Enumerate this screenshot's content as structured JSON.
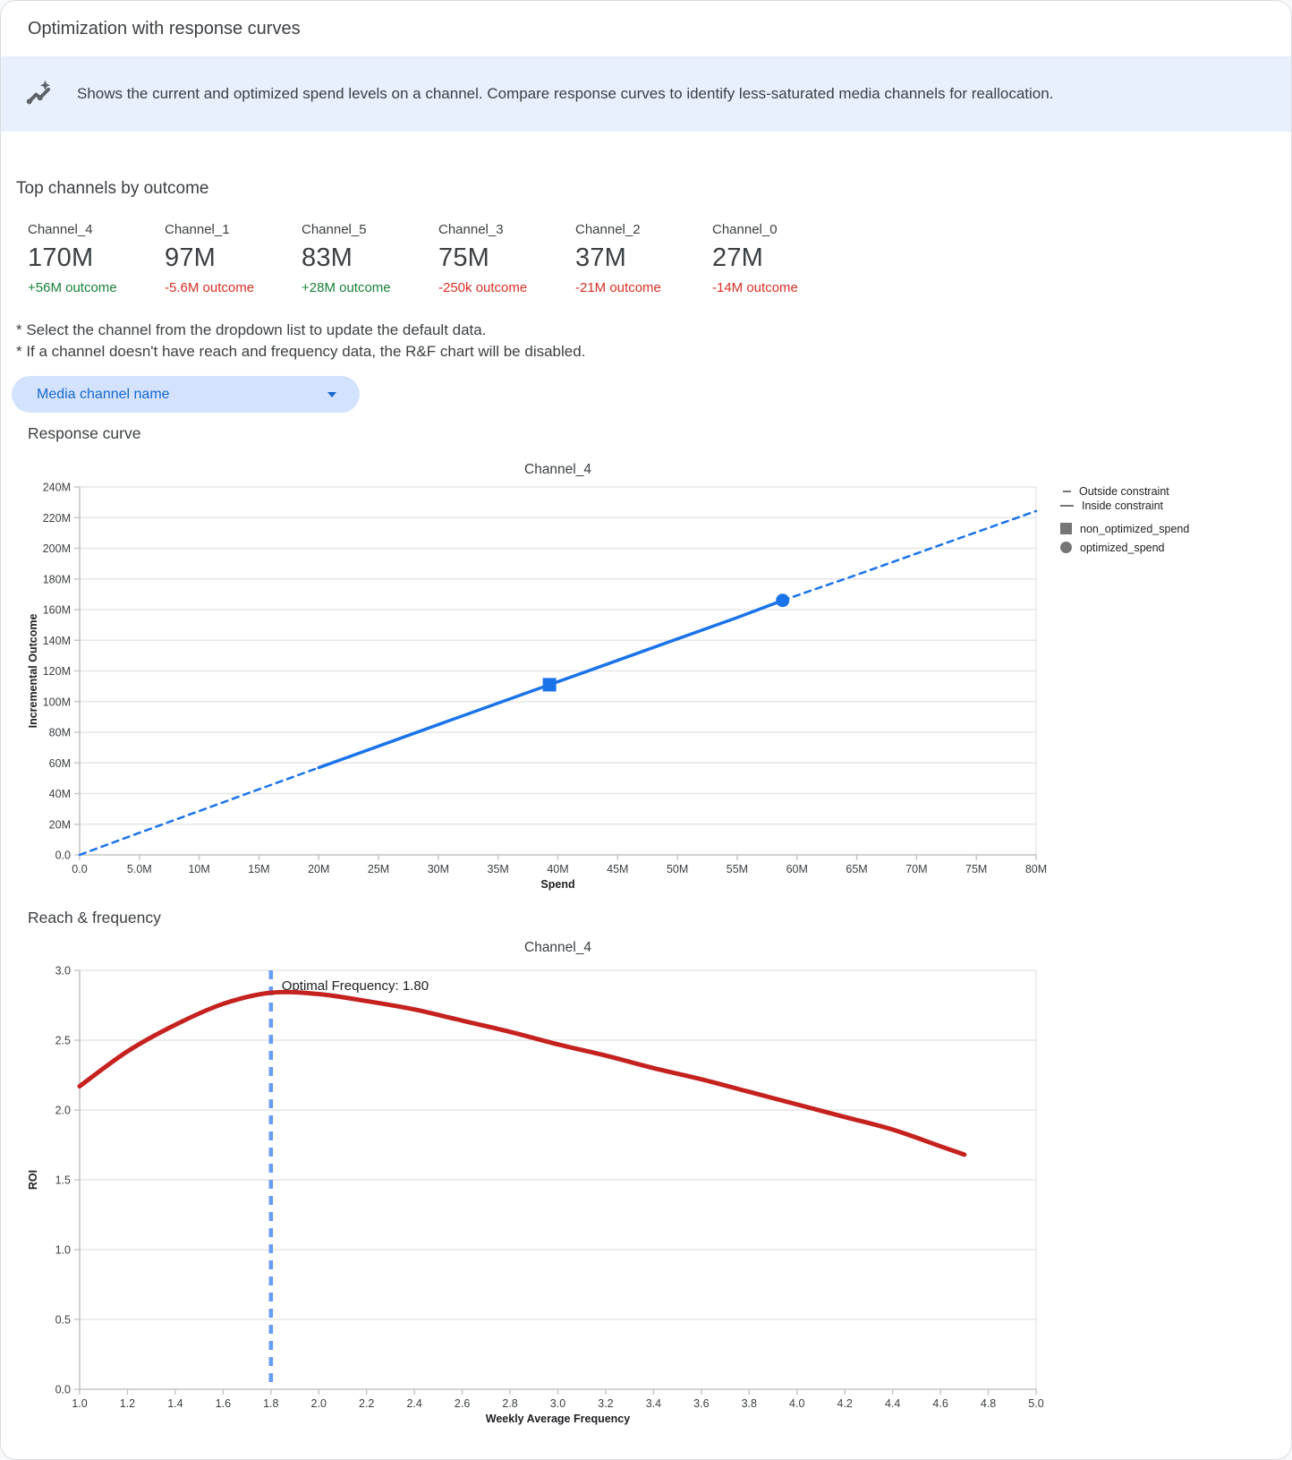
{
  "header": {
    "title": "Optimization with response curves"
  },
  "banner": {
    "icon": "insights-icon",
    "text": "Shows the current and optimized spend levels on a channel. Compare response curves to identify less-saturated media channels for reallocation."
  },
  "top_channels": {
    "heading": "Top channels by outcome",
    "items": [
      {
        "name": "Channel_4",
        "value": "170M",
        "outcome": "+56M outcome",
        "direction": "positive"
      },
      {
        "name": "Channel_1",
        "value": "97M",
        "outcome": "-5.6M outcome",
        "direction": "negative"
      },
      {
        "name": "Channel_5",
        "value": "83M",
        "outcome": "+28M outcome",
        "direction": "positive"
      },
      {
        "name": "Channel_3",
        "value": "75M",
        "outcome": "-250k outcome",
        "direction": "negative"
      },
      {
        "name": "Channel_2",
        "value": "37M",
        "outcome": "-21M outcome",
        "direction": "negative"
      },
      {
        "name": "Channel_0",
        "value": "27M",
        "outcome": "-14M outcome",
        "direction": "negative"
      }
    ]
  },
  "notes": [
    "* Select the channel from the dropdown list to update the default data.",
    "* If a channel doesn't have reach and frequency data, the R&F chart will be disabled."
  ],
  "dropdown": {
    "label": "Media channel name"
  },
  "sections": {
    "response_curve": "Response curve",
    "reach_frequency": "Reach & frequency"
  },
  "colors": {
    "accent_blue": "#1A73E8",
    "light_blue_dash": "#669DF6",
    "red_curve": "#C5221F",
    "positive_green": "#188038",
    "negative_red": "#D93025",
    "banner_bg": "#E8F0FE",
    "pill_bg": "#D3E3FD",
    "pill_text": "#1967D2"
  },
  "chart_data": [
    {
      "type": "line",
      "title": "Channel_4",
      "xlabel": "Spend",
      "ylabel": "Incremental Outcome",
      "unit": "millions",
      "xlim": [
        0,
        80
      ],
      "ylim": [
        0,
        240
      ],
      "x_ticks": {
        "values": [
          0,
          5,
          10,
          15,
          20,
          25,
          30,
          35,
          40,
          45,
          50,
          55,
          60,
          65,
          70,
          75,
          80
        ],
        "labels": [
          "0.0",
          "5.0M",
          "10M",
          "15M",
          "20M",
          "25M",
          "30M",
          "35M",
          "40M",
          "45M",
          "50M",
          "55M",
          "60M",
          "65M",
          "70M",
          "75M",
          "80M"
        ]
      },
      "y_ticks": {
        "values": [
          0,
          20,
          40,
          60,
          80,
          100,
          120,
          140,
          160,
          180,
          200,
          220,
          240
        ],
        "labels": [
          "0.0",
          "20M",
          "40M",
          "60M",
          "80M",
          "100M",
          "120M",
          "140M",
          "160M",
          "180M",
          "200M",
          "220M",
          "240M"
        ]
      },
      "series": [
        {
          "name": "outside-constraint-lower",
          "style": "dashed",
          "color": "#1A73E8",
          "width": 2.5,
          "points": [
            [
              0,
              0
            ],
            [
              5,
              14.4
            ],
            [
              10,
              28.6
            ],
            [
              15,
              42.8
            ],
            [
              20,
              56.9
            ]
          ]
        },
        {
          "name": "inside-constraint",
          "style": "solid",
          "color": "#1A73E8",
          "width": 3.5,
          "points": [
            [
              20,
              56.9
            ],
            [
              25,
              70.9
            ],
            [
              30,
              85.0
            ],
            [
              35,
              99.0
            ],
            [
              39.3,
              111.0
            ],
            [
              45,
              126.9
            ],
            [
              50,
              140.9
            ],
            [
              55,
              154.8
            ],
            [
              58.8,
              166.0
            ]
          ]
        },
        {
          "name": "outside-constraint-upper",
          "style": "dashed",
          "color": "#1A73E8",
          "width": 2.5,
          "points": [
            [
              58.8,
              166.0
            ],
            [
              65,
              182.7
            ],
            [
              70,
              196.6
            ],
            [
              75,
              210.5
            ],
            [
              80,
              224.3
            ]
          ]
        }
      ],
      "markers": [
        {
          "name": "non_optimized_spend",
          "shape": "square",
          "point": [
            39.3,
            111.0
          ],
          "color": "#1A73E8",
          "size": 15
        },
        {
          "name": "optimized_spend",
          "shape": "circle",
          "point": [
            58.8,
            166.0
          ],
          "color": "#1A73E8",
          "size": 15
        }
      ],
      "legend": [
        {
          "swatch": "dash",
          "label": "Outside constraint"
        },
        {
          "swatch": "line",
          "label": "Inside constraint"
        },
        {
          "swatch": "square",
          "label": "non_optimized_spend"
        },
        {
          "swatch": "circle",
          "label": "optimized_spend"
        }
      ],
      "legend_position": "right-top",
      "grid": true
    },
    {
      "type": "line",
      "title": "Channel_4",
      "xlabel": "Weekly Average Frequency",
      "ylabel": "ROI",
      "xlim": [
        1.0,
        5.0
      ],
      "ylim": [
        0.0,
        3.0
      ],
      "x_ticks": {
        "values": [
          1.0,
          1.2,
          1.4,
          1.6,
          1.8,
          2.0,
          2.2,
          2.4,
          2.6,
          2.8,
          3.0,
          3.2,
          3.4,
          3.6,
          3.8,
          4.0,
          4.2,
          4.4,
          4.6,
          4.8,
          5.0
        ],
        "labels": [
          "1.0",
          "1.2",
          "1.4",
          "1.6",
          "1.8",
          "2.0",
          "2.2",
          "2.4",
          "2.6",
          "2.8",
          "3.0",
          "3.2",
          "3.4",
          "3.6",
          "3.8",
          "4.0",
          "4.2",
          "4.4",
          "4.6",
          "4.8",
          "5.0"
        ]
      },
      "y_ticks": {
        "values": [
          0.0,
          0.5,
          1.0,
          1.5,
          2.0,
          2.5,
          3.0
        ],
        "labels": [
          "0.0",
          "0.5",
          "1.0",
          "1.5",
          "2.0",
          "2.5",
          "3.0"
        ]
      },
      "series": [
        {
          "name": "roi-curve",
          "style": "solid",
          "color": "#C5221F",
          "width": 5,
          "smooth": true,
          "points": [
            [
              1.0,
              2.17
            ],
            [
              1.2,
              2.42
            ],
            [
              1.4,
              2.61
            ],
            [
              1.6,
              2.76
            ],
            [
              1.8,
              2.84
            ],
            [
              2.0,
              2.83
            ],
            [
              2.2,
              2.78
            ],
            [
              2.4,
              2.72
            ],
            [
              2.6,
              2.64
            ],
            [
              2.8,
              2.56
            ],
            [
              3.0,
              2.47
            ],
            [
              3.2,
              2.39
            ],
            [
              3.4,
              2.3
            ],
            [
              3.6,
              2.22
            ],
            [
              3.8,
              2.13
            ],
            [
              4.0,
              2.04
            ],
            [
              4.2,
              1.95
            ],
            [
              4.4,
              1.86
            ],
            [
              4.6,
              1.74
            ],
            [
              4.7,
              1.68
            ]
          ]
        }
      ],
      "vline": {
        "x": 1.8,
        "color": "#669DF6",
        "label": "Optimal Frequency: 1.80"
      },
      "optimal_frequency": "1.80",
      "grid": true
    }
  ]
}
